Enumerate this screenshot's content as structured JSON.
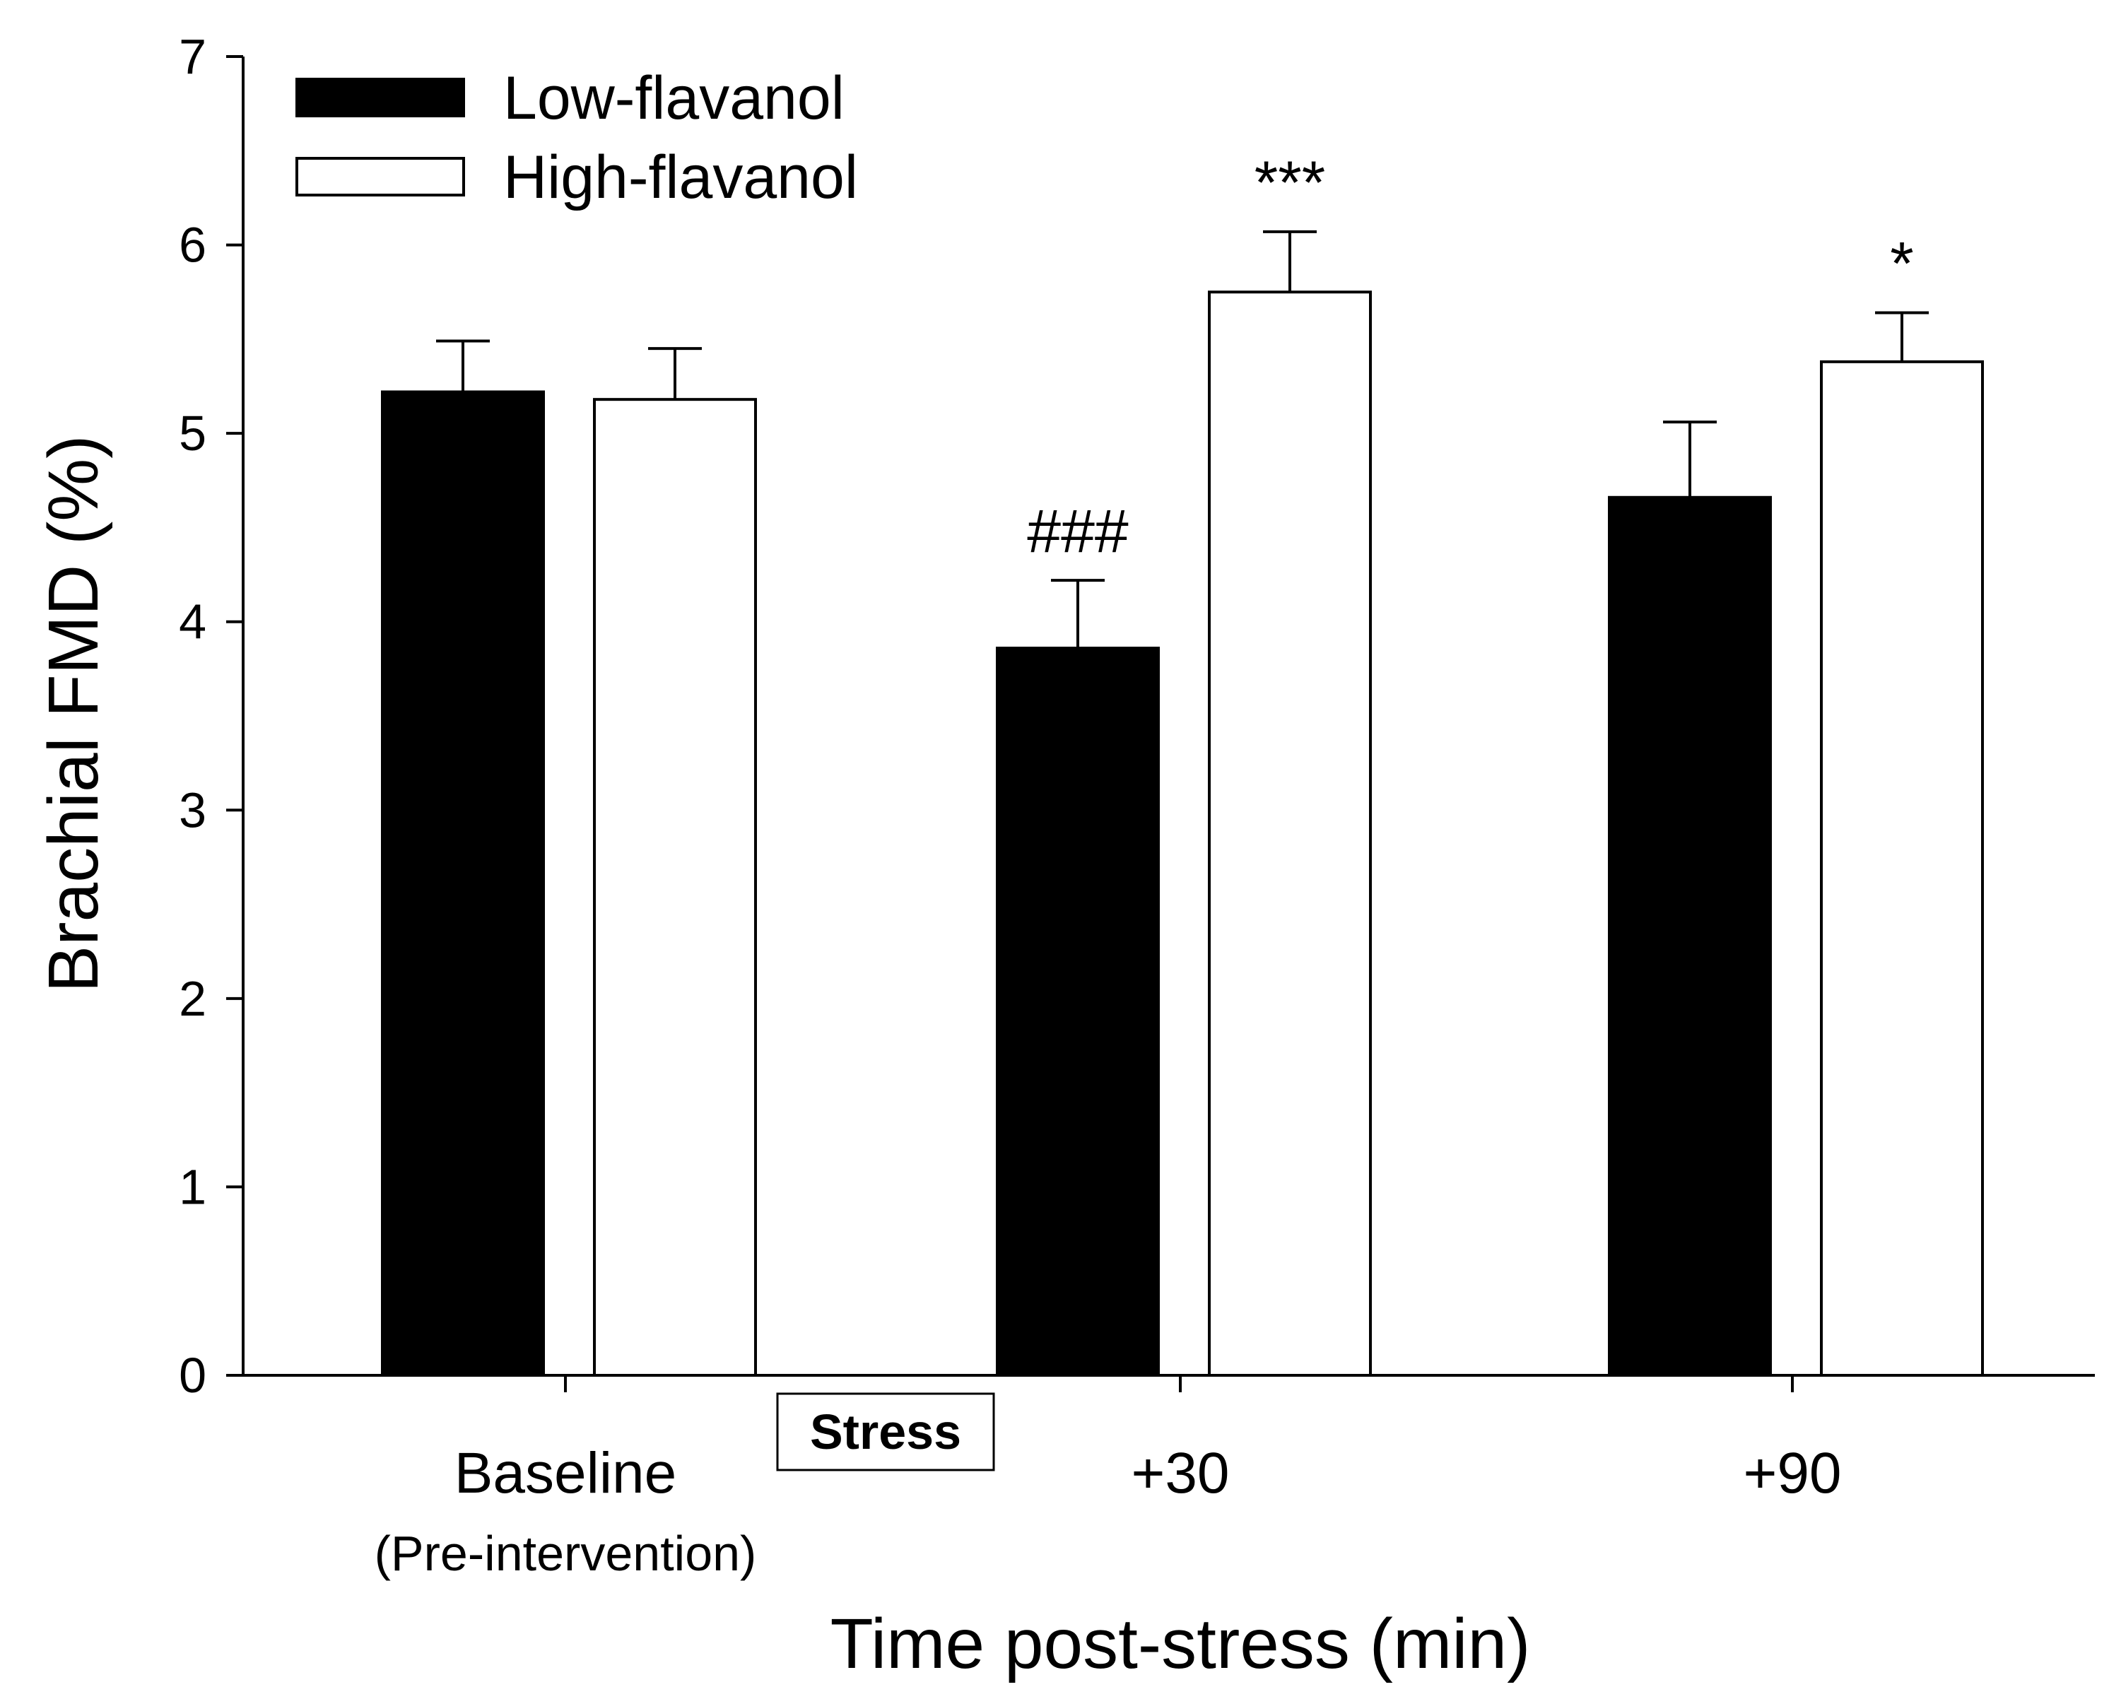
{
  "chart_data": {
    "type": "bar",
    "title": "",
    "xlabel": "Time post-stress (min)",
    "ylabel": "Brachial FMD (%)",
    "ylim": [
      0,
      7
    ],
    "yticks": [
      "0",
      "1",
      "2",
      "3",
      "4",
      "5",
      "6",
      "7"
    ],
    "grid": false,
    "legend_position": "top-left",
    "categories": [
      {
        "label": "Baseline",
        "sublabel": "(Pre-intervention)"
      },
      {
        "label": "+30",
        "sublabel": ""
      },
      {
        "label": "+90",
        "sublabel": ""
      }
    ],
    "series": [
      {
        "name": "Low-flavanol",
        "fill": "#000000",
        "values": [
          5.22,
          3.86,
          4.66
        ],
        "errors": [
          0.27,
          0.36,
          0.4
        ],
        "annotations": [
          "",
          "###",
          ""
        ]
      },
      {
        "name": "High-flavanol",
        "fill": "#ffffff",
        "values": [
          5.18,
          5.75,
          5.38
        ],
        "errors": [
          0.27,
          0.32,
          0.26
        ],
        "annotations": [
          "",
          "***",
          "*"
        ]
      }
    ],
    "extra_labels": {
      "stress_box": "Stress"
    }
  }
}
